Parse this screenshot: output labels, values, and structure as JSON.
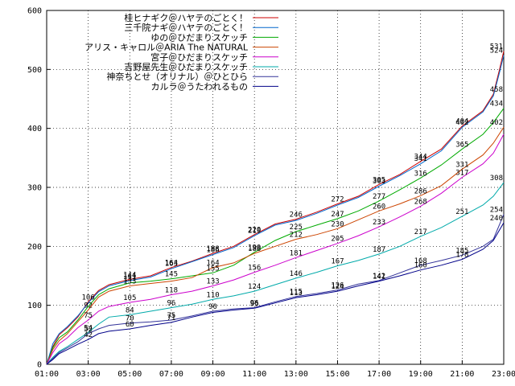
{
  "chart_data": {
    "type": "line",
    "title": "",
    "xlabel": "",
    "ylabel": "",
    "xlim": [
      1,
      23
    ],
    "ylim": [
      0,
      600
    ],
    "grid": true,
    "legend_position": "top-left",
    "x_ticks": [
      "01:00",
      "03:00",
      "05:00",
      "07:00",
      "09:00",
      "11:00",
      "13:00",
      "15:00",
      "17:00",
      "19:00",
      "21:00",
      "23:00"
    ],
    "y_ticks": [
      0,
      100,
      200,
      300,
      400,
      500,
      600
    ],
    "series": [
      {
        "name": "桂ヒナギク＠ハヤテのごとく！",
        "color": "#cc0000",
        "points": [
          [
            1,
            0
          ],
          [
            1.3,
            30
          ],
          [
            1.6,
            50
          ],
          [
            2,
            62
          ],
          [
            2.5,
            80
          ],
          [
            3,
            106
          ],
          [
            3.5,
            125
          ],
          [
            4,
            135
          ],
          [
            5,
            144
          ],
          [
            6,
            150
          ],
          [
            7,
            164
          ],
          [
            8,
            175
          ],
          [
            9,
            188
          ],
          [
            10,
            200
          ],
          [
            11,
            220
          ],
          [
            12,
            238
          ],
          [
            13,
            246
          ],
          [
            14,
            258
          ],
          [
            15,
            272
          ],
          [
            16,
            285
          ],
          [
            17,
            305
          ],
          [
            18,
            322
          ],
          [
            19,
            344
          ],
          [
            20,
            365
          ],
          [
            21,
            404
          ],
          [
            22,
            430
          ],
          [
            22.5,
            458
          ],
          [
            22.8,
            500
          ],
          [
            23,
            531
          ]
        ],
        "labels": [
          [
            3,
            106
          ],
          [
            5,
            144
          ],
          [
            7,
            164
          ],
          [
            9,
            188
          ],
          [
            11,
            220
          ],
          [
            13,
            246
          ],
          [
            15,
            272
          ],
          [
            17,
            305
          ],
          [
            19,
            344
          ],
          [
            21,
            404
          ],
          [
            23,
            458
          ],
          [
            23,
            531
          ]
        ]
      },
      {
        "name": "三千院ナギ＠ハヤテのごとく！",
        "color": "#0066cc",
        "points": [
          [
            1,
            0
          ],
          [
            1.3,
            35
          ],
          [
            1.6,
            52
          ],
          [
            2,
            64
          ],
          [
            2.5,
            82
          ],
          [
            3,
            104
          ],
          [
            3.5,
            123
          ],
          [
            4,
            133
          ],
          [
            5,
            142
          ],
          [
            6,
            148
          ],
          [
            7,
            162
          ],
          [
            8,
            174
          ],
          [
            9,
            186
          ],
          [
            10,
            198
          ],
          [
            11,
            218
          ],
          [
            12,
            236
          ],
          [
            13,
            244
          ],
          [
            14,
            256
          ],
          [
            15,
            270
          ],
          [
            16,
            283
          ],
          [
            17,
            302
          ],
          [
            18,
            320
          ],
          [
            19,
            340
          ],
          [
            20,
            362
          ],
          [
            21,
            402
          ],
          [
            22,
            428
          ],
          [
            22.5,
            455
          ],
          [
            22.8,
            495
          ],
          [
            23,
            524
          ]
        ],
        "labels": [
          [
            5,
            141
          ],
          [
            7,
            163
          ],
          [
            9,
            186
          ],
          [
            11,
            219
          ],
          [
            17,
            303
          ],
          [
            19,
            341
          ],
          [
            21,
            402
          ],
          [
            23,
            524
          ]
        ]
      },
      {
        "name": "ゆの＠ひだまりスケッチ",
        "color": "#00aa00",
        "points": [
          [
            1,
            0
          ],
          [
            1.3,
            28
          ],
          [
            1.6,
            45
          ],
          [
            2,
            55
          ],
          [
            2.5,
            75
          ],
          [
            3,
            98
          ],
          [
            3.5,
            118
          ],
          [
            4,
            128
          ],
          [
            5,
            138
          ],
          [
            6,
            141
          ],
          [
            7,
            145
          ],
          [
            8,
            150
          ],
          [
            9,
            155
          ],
          [
            10,
            168
          ],
          [
            11,
            190
          ],
          [
            12,
            210
          ],
          [
            13,
            225
          ],
          [
            14,
            236
          ],
          [
            15,
            247
          ],
          [
            16,
            260
          ],
          [
            17,
            277
          ],
          [
            18,
            296
          ],
          [
            19,
            316
          ],
          [
            20,
            338
          ],
          [
            21,
            365
          ],
          [
            22,
            390
          ],
          [
            22.5,
            410
          ],
          [
            23,
            434
          ]
        ],
        "labels": [
          [
            5,
            137
          ],
          [
            7,
            145
          ],
          [
            9,
            155
          ],
          [
            11,
            190
          ],
          [
            13,
            225
          ],
          [
            15,
            247
          ],
          [
            17,
            277
          ],
          [
            19,
            316
          ],
          [
            21,
            365
          ],
          [
            23,
            434
          ]
        ]
      },
      {
        "name": "アリス・キャロル＠ARIA The NATURAL",
        "color": "#cc4400",
        "points": [
          [
            1,
            0
          ],
          [
            1.3,
            25
          ],
          [
            1.6,
            40
          ],
          [
            2,
            52
          ],
          [
            2.5,
            72
          ],
          [
            3,
            92
          ],
          [
            3.5,
            114
          ],
          [
            4,
            124
          ],
          [
            5,
            133
          ],
          [
            6,
            137
          ],
          [
            7,
            141
          ],
          [
            8,
            147
          ],
          [
            9,
            164
          ],
          [
            10,
            172
          ],
          [
            11,
            188
          ],
          [
            12,
            200
          ],
          [
            13,
            212
          ],
          [
            14,
            220
          ],
          [
            15,
            230
          ],
          [
            16,
            245
          ],
          [
            17,
            260
          ],
          [
            18,
            272
          ],
          [
            19,
            286
          ],
          [
            20,
            303
          ],
          [
            21,
            331
          ],
          [
            22,
            355
          ],
          [
            22.5,
            375
          ],
          [
            23,
            402
          ]
        ],
        "labels": [
          [
            3,
            92
          ],
          [
            5,
            133
          ],
          [
            9,
            164
          ],
          [
            11,
            188
          ],
          [
            13,
            212
          ],
          [
            15,
            230
          ],
          [
            17,
            260
          ],
          [
            19,
            286
          ],
          [
            21,
            331
          ],
          [
            23,
            402
          ]
        ]
      },
      {
        "name": "宮子＠ひだまりスケッチ",
        "color": "#cc00cc",
        "points": [
          [
            1,
            0
          ],
          [
            1.3,
            20
          ],
          [
            1.6,
            35
          ],
          [
            2,
            45
          ],
          [
            2.5,
            62
          ],
          [
            3,
            75
          ],
          [
            3.5,
            90
          ],
          [
            4,
            98
          ],
          [
            5,
            105
          ],
          [
            6,
            110
          ],
          [
            7,
            118
          ],
          [
            8,
            124
          ],
          [
            9,
            133
          ],
          [
            10,
            143
          ],
          [
            11,
            156
          ],
          [
            12,
            168
          ],
          [
            13,
            181
          ],
          [
            14,
            193
          ],
          [
            15,
            205
          ],
          [
            16,
            218
          ],
          [
            17,
            233
          ],
          [
            18,
            250
          ],
          [
            19,
            268
          ],
          [
            20,
            290
          ],
          [
            21,
            317
          ],
          [
            22,
            340
          ],
          [
            22.5,
            358
          ],
          [
            23,
            390
          ]
        ],
        "labels": [
          [
            3,
            75
          ],
          [
            5,
            105
          ],
          [
            7,
            118
          ],
          [
            9,
            133
          ],
          [
            11,
            156
          ],
          [
            13,
            181
          ],
          [
            15,
            205
          ],
          [
            17,
            233
          ],
          [
            19,
            268
          ],
          [
            21,
            317
          ]
        ]
      },
      {
        "name": "吉野屋先生＠ひだまりスケッチ",
        "color": "#00aaaa",
        "points": [
          [
            1,
            0
          ],
          [
            1.3,
            12
          ],
          [
            1.6,
            22
          ],
          [
            2,
            30
          ],
          [
            2.5,
            42
          ],
          [
            3,
            54
          ],
          [
            3.5,
            68
          ],
          [
            4,
            80
          ],
          [
            5,
            84
          ],
          [
            6,
            90
          ],
          [
            7,
            96
          ],
          [
            8,
            102
          ],
          [
            9,
            110
          ],
          [
            10,
            116
          ],
          [
            11,
            124
          ],
          [
            12,
            135
          ],
          [
            13,
            146
          ],
          [
            14,
            156
          ],
          [
            15,
            167
          ],
          [
            16,
            176
          ],
          [
            17,
            187
          ],
          [
            18,
            200
          ],
          [
            19,
            217
          ],
          [
            20,
            232
          ],
          [
            21,
            251
          ],
          [
            22,
            270
          ],
          [
            22.5,
            285
          ],
          [
            23,
            308
          ]
        ],
        "labels": [
          [
            3,
            54
          ],
          [
            5,
            84
          ],
          [
            7,
            96
          ],
          [
            9,
            110
          ],
          [
            11,
            124
          ],
          [
            13,
            146
          ],
          [
            15,
            167
          ],
          [
            17,
            187
          ],
          [
            19,
            217
          ],
          [
            21,
            251
          ],
          [
            23,
            308
          ]
        ]
      },
      {
        "name": "神奈ちとせ（オリナル）＠ひとひら",
        "color": "#333399",
        "points": [
          [
            1,
            0
          ],
          [
            1.3,
            10
          ],
          [
            1.6,
            20
          ],
          [
            2,
            28
          ],
          [
            2.5,
            38
          ],
          [
            3,
            52
          ],
          [
            3.5,
            60
          ],
          [
            4,
            66
          ],
          [
            5,
            70
          ],
          [
            6,
            72
          ],
          [
            7,
            75
          ],
          [
            8,
            82
          ],
          [
            9,
            90
          ],
          [
            10,
            94
          ],
          [
            11,
            96
          ],
          [
            12,
            106
          ],
          [
            13,
            115
          ],
          [
            14,
            120
          ],
          [
            15,
            126
          ],
          [
            16,
            136
          ],
          [
            17,
            142
          ],
          [
            18,
            155
          ],
          [
            19,
            168
          ],
          [
            20,
            176
          ],
          [
            21,
            185
          ],
          [
            22,
            200
          ],
          [
            22.5,
            212
          ],
          [
            23,
            254
          ]
        ],
        "labels": [
          [
            3,
            52
          ],
          [
            5,
            70
          ],
          [
            7,
            75
          ],
          [
            9,
            90
          ],
          [
            11,
            96
          ],
          [
            13,
            115
          ],
          [
            15,
            126
          ],
          [
            17,
            142
          ],
          [
            19,
            168
          ],
          [
            21,
            185
          ],
          [
            23,
            254
          ]
        ]
      },
      {
        "name": "カルラ＠うたわれるもの",
        "color": "#000088",
        "points": [
          [
            1,
            0
          ],
          [
            1.3,
            8
          ],
          [
            1.6,
            18
          ],
          [
            2,
            25
          ],
          [
            2.5,
            34
          ],
          [
            3,
            42
          ],
          [
            3.5,
            52
          ],
          [
            4,
            56
          ],
          [
            5,
            60
          ],
          [
            6,
            66
          ],
          [
            7,
            71
          ],
          [
            8,
            80
          ],
          [
            9,
            88
          ],
          [
            10,
            92
          ],
          [
            11,
            95
          ],
          [
            12,
            104
          ],
          [
            13,
            113
          ],
          [
            14,
            118
          ],
          [
            15,
            124
          ],
          [
            16,
            133
          ],
          [
            17,
            141
          ],
          [
            18,
            150
          ],
          [
            19,
            160
          ],
          [
            20,
            168
          ],
          [
            21,
            178
          ],
          [
            22,
            195
          ],
          [
            22.5,
            210
          ],
          [
            23,
            240
          ]
        ],
        "labels": [
          [
            3,
            42
          ],
          [
            5,
            60
          ],
          [
            7,
            71
          ],
          [
            11,
            95
          ],
          [
            13,
            113
          ],
          [
            15,
            124
          ],
          [
            17,
            141
          ],
          [
            19,
            160
          ],
          [
            21,
            178
          ],
          [
            23,
            240
          ]
        ]
      }
    ]
  }
}
